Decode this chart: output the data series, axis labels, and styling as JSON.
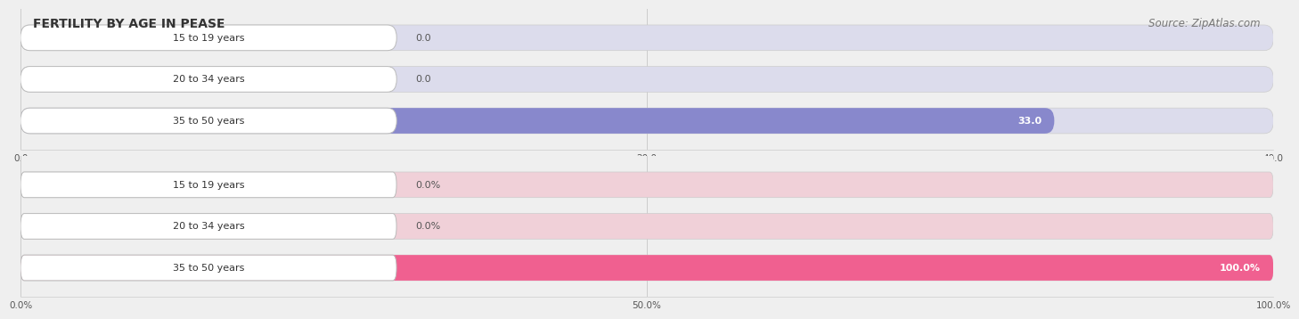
{
  "title": "FERTILITY BY AGE IN PEASE",
  "source": "Source: ZipAtlas.com",
  "top_chart": {
    "categories": [
      "15 to 19 years",
      "20 to 34 years",
      "35 to 50 years"
    ],
    "values": [
      0.0,
      0.0,
      33.0
    ],
    "bar_color": "#8888cc",
    "bar_bg_color": "#dcdcec",
    "xlim": [
      0,
      40
    ],
    "xticks": [
      0.0,
      20.0,
      40.0
    ],
    "value_suffix": ""
  },
  "bottom_chart": {
    "categories": [
      "15 to 19 years",
      "20 to 34 years",
      "35 to 50 years"
    ],
    "values": [
      0.0,
      0.0,
      100.0
    ],
    "bar_color": "#f06090",
    "bar_bg_color": "#f0d0d8",
    "xlim": [
      0,
      100
    ],
    "xticks": [
      0.0,
      50.0,
      100.0
    ],
    "value_suffix": "%"
  },
  "bg_color": "#efefef",
  "label_box_color": "#ffffff",
  "label_box_border": "#bbbbbb",
  "label_color": "#333333",
  "value_label_inside_color": "#ffffff",
  "value_label_outside_color": "#555555",
  "title_fontsize": 10,
  "source_fontsize": 8.5,
  "label_fontsize": 8,
  "value_fontsize": 8,
  "bar_height": 0.6
}
